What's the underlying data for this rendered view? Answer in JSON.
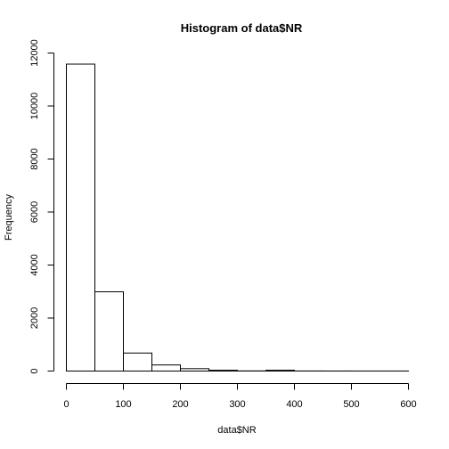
{
  "chart_data": {
    "type": "bar",
    "title": "Histogram of data$NR",
    "xlabel": "data$NR",
    "ylabel": "Frequency",
    "bins": [
      {
        "x0": 0,
        "x1": 50,
        "count": 11580
      },
      {
        "x0": 50,
        "x1": 100,
        "count": 2990
      },
      {
        "x0": 100,
        "x1": 150,
        "count": 680
      },
      {
        "x0": 150,
        "x1": 200,
        "count": 230
      },
      {
        "x0": 200,
        "x1": 250,
        "count": 90
      },
      {
        "x0": 250,
        "x1": 300,
        "count": 30
      },
      {
        "x0": 300,
        "x1": 350,
        "count": 5
      },
      {
        "x0": 350,
        "x1": 400,
        "count": 30
      },
      {
        "x0": 400,
        "x1": 450,
        "count": 3
      },
      {
        "x0": 450,
        "x1": 500,
        "count": 2
      },
      {
        "x0": 500,
        "x1": 550,
        "count": 1
      },
      {
        "x0": 550,
        "x1": 600,
        "count": 1
      }
    ],
    "xlim": [
      0,
      600
    ],
    "ylim": [
      0,
      12000
    ],
    "x_ticks": [
      "0",
      "100",
      "200",
      "300",
      "400",
      "500",
      "600"
    ],
    "y_ticks": [
      "0",
      "2000",
      "4000",
      "6000",
      "8000",
      "10000",
      "12000"
    ],
    "grid": false,
    "bar_fill": "#ffffff",
    "bar_stroke": "#000000"
  }
}
